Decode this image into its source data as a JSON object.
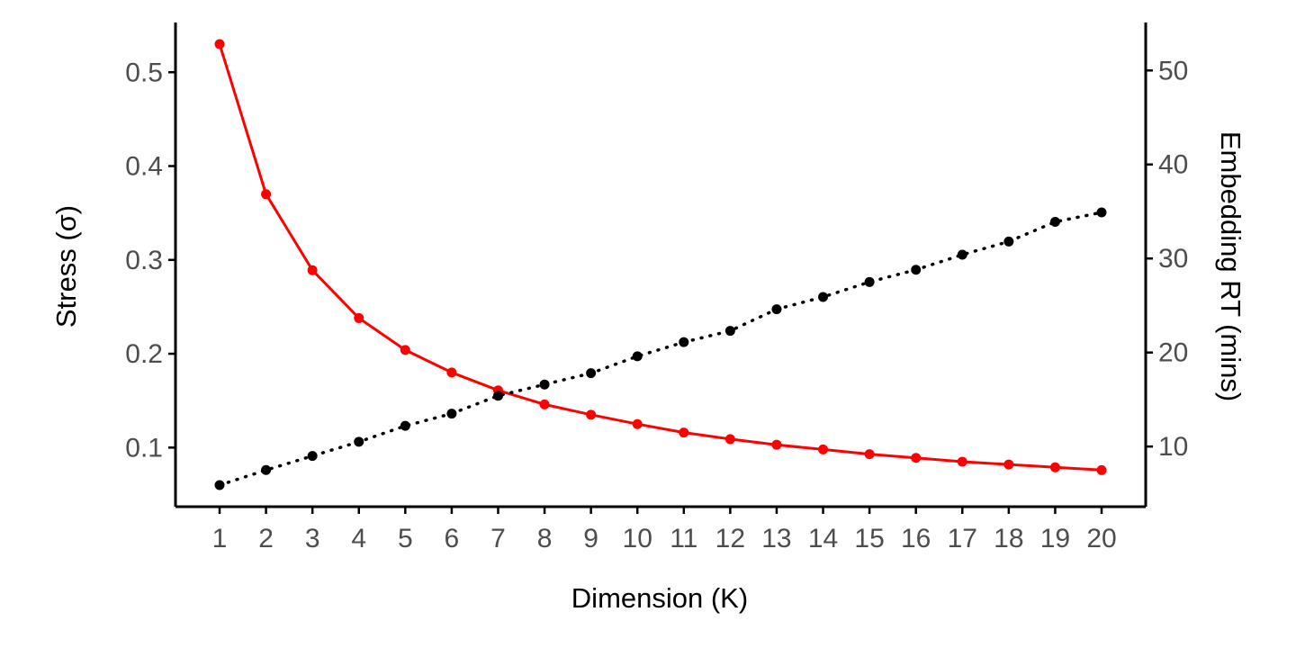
{
  "chart_data": {
    "type": "line",
    "xlabel": "Dimension (K)",
    "ylabel_left": "Stress (σ)",
    "ylabel_right": "Embedding RT (mins)",
    "x": [
      1,
      2,
      3,
      4,
      5,
      6,
      7,
      8,
      9,
      10,
      11,
      12,
      13,
      14,
      15,
      16,
      17,
      18,
      19,
      20
    ],
    "x_ticks": [
      "1",
      "2",
      "3",
      "4",
      "5",
      "6",
      "7",
      "8",
      "9",
      "10",
      "11",
      "12",
      "13",
      "14",
      "15",
      "16",
      "17",
      "18",
      "19",
      "20"
    ],
    "y_left_ticks": [
      "0.1",
      "0.2",
      "0.3",
      "0.4",
      "0.5"
    ],
    "y_left_tick_values": [
      0.1,
      0.2,
      0.3,
      0.4,
      0.5
    ],
    "y_left_range": [
      0.037,
      0.553
    ],
    "y_right_ticks": [
      "10",
      "20",
      "30",
      "40",
      "50"
    ],
    "y_right_tick_values": [
      10,
      20,
      30,
      40,
      50
    ],
    "y_right_range": [
      3.6,
      55.1
    ],
    "x_range": [
      0.05,
      20.95
    ],
    "grid": false,
    "series": [
      {
        "axis": "left",
        "color": "#ff0000",
        "line_style": "solid",
        "values": [
          0.53,
          0.37,
          0.289,
          0.238,
          0.204,
          0.18,
          0.161,
          0.146,
          0.135,
          0.125,
          0.116,
          0.109,
          0.103,
          0.098,
          0.093,
          0.089,
          0.085,
          0.082,
          0.079,
          0.076
        ]
      },
      {
        "axis": "right",
        "color": "#000000",
        "line_style": "dotted",
        "values": [
          5.9,
          7.5,
          9.0,
          10.5,
          12.2,
          13.5,
          15.4,
          16.6,
          17.8,
          19.6,
          21.1,
          22.3,
          24.6,
          25.9,
          27.5,
          28.8,
          30.4,
          31.8,
          33.9,
          34.9
        ]
      }
    ]
  }
}
